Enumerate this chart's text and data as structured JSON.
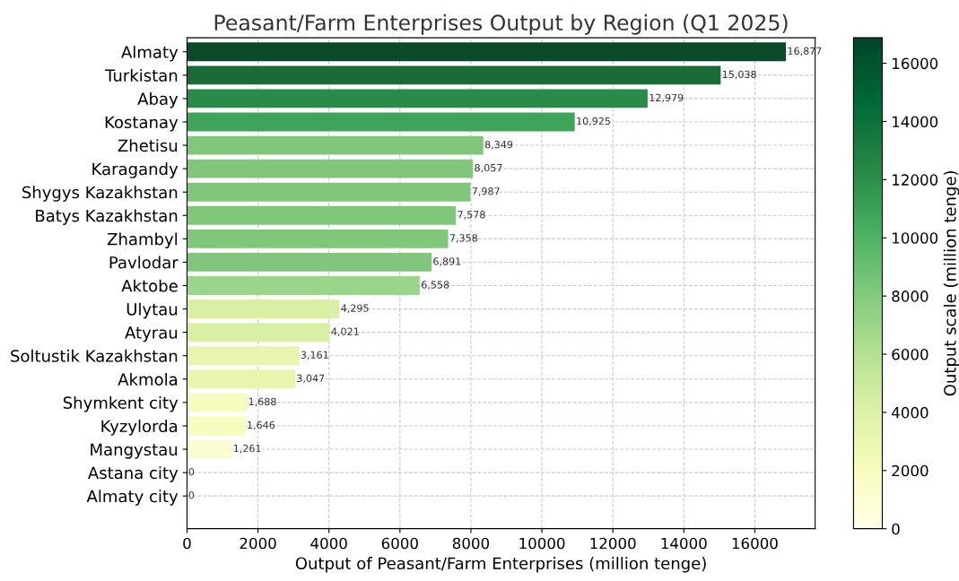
{
  "chart_data": {
    "type": "bar",
    "orientation": "horizontal",
    "title": "Peasant/Farm Enterprises Output by Region (Q1 2025)",
    "xlabel": "Output of Peasant/Farm Enterprises (million tenge)",
    "clabel": "Output scale (million tenge)",
    "categories": [
      "Almaty",
      "Turkistan",
      "Abay",
      "Kostanay",
      "Zhetisu",
      "Karagandy",
      "Shygys Kazakhstan",
      "Batys Kazakhstan",
      "Zhambyl",
      "Pavlodar",
      "Aktobe",
      "Ulytau",
      "Atyrau",
      "Soltustik Kazakhstan",
      "Akmola",
      "Shymkent city",
      "Kyzylorda",
      "Mangystau",
      "Astana city",
      "Almaty city"
    ],
    "values": [
      16877,
      15038,
      12979,
      10925,
      8349,
      8057,
      7987,
      7578,
      7358,
      6891,
      6558,
      4295,
      4021,
      3161,
      3047,
      1688,
      1646,
      1261,
      0,
      0
    ],
    "value_labels": [
      "16,877",
      "15,038",
      "12,979",
      "10,925",
      "8,349",
      "8,057",
      "7,987",
      "7,578",
      "7,358",
      "6,891",
      "6,558",
      "4,295",
      "4,021",
      "3,161",
      "3,047",
      "1,688",
      "1,646",
      "1,261",
      "0",
      "0"
    ],
    "colors": [
      "#0b4a28",
      "#1a6b37",
      "#2a8a48",
      "#3fa35a",
      "#80c67b",
      "#80c67b",
      "#80c67b",
      "#80c67b",
      "#80c67b",
      "#80c67b",
      "#9bd58b",
      "#d9efa3",
      "#d9efa3",
      "#e9f5ae",
      "#e9f5ae",
      "#f7fbbd",
      "#f7fbbd",
      "#fbfdd0",
      "#ffffe5",
      "#ffffe5"
    ],
    "xlim": [
      0,
      17700
    ],
    "xticks": [
      0,
      2000,
      4000,
      6000,
      8000,
      10000,
      12000,
      14000,
      16000
    ],
    "clim": [
      0,
      16877
    ],
    "cticks": [
      0,
      2000,
      4000,
      6000,
      8000,
      10000,
      12000,
      14000,
      16000
    ],
    "grid": true
  }
}
